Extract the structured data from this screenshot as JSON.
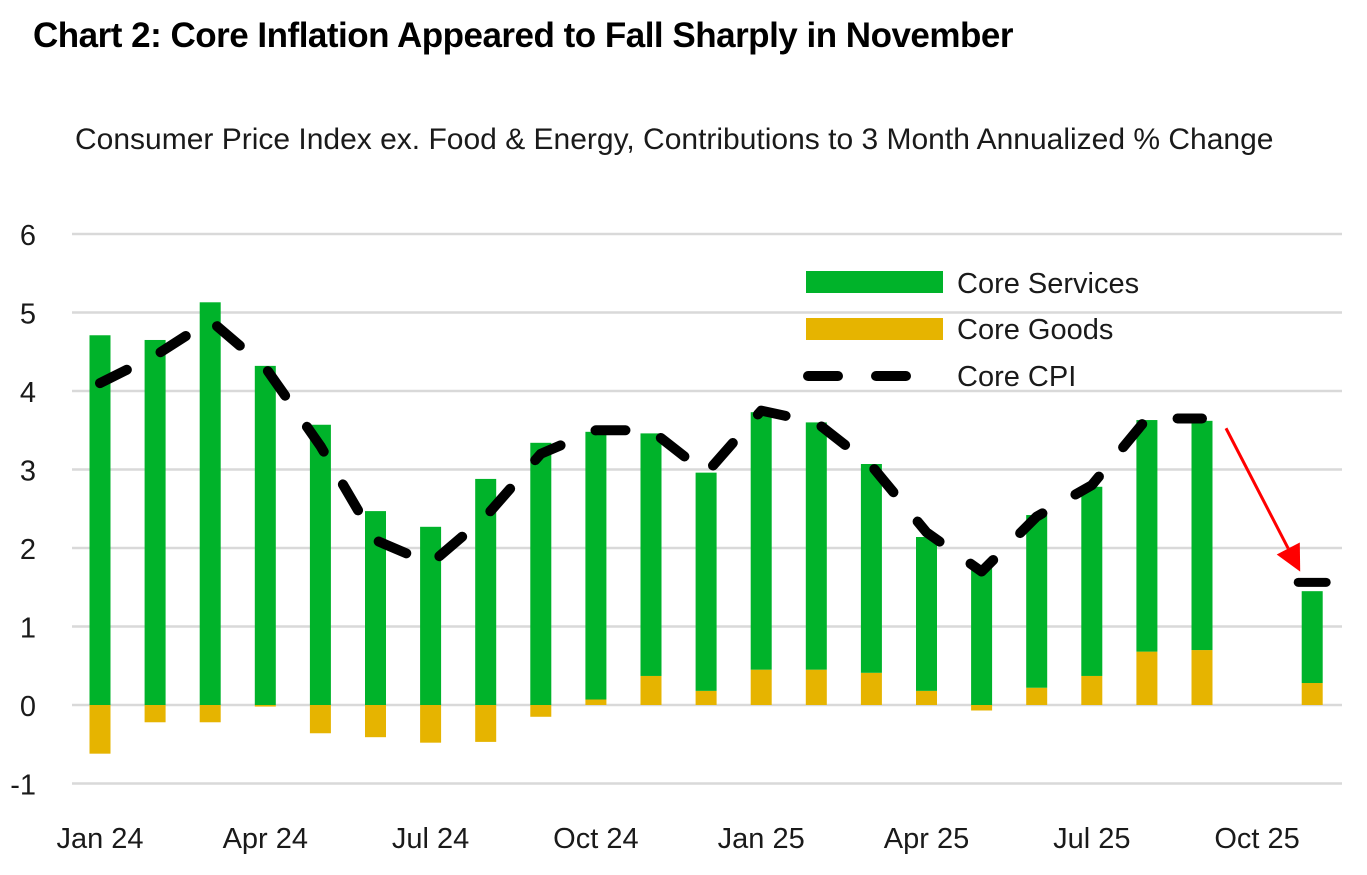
{
  "title": "Chart 2: Core Inflation Appeared to Fall Sharply in November",
  "subtitle": "Consumer Price Index ex. Food & Energy, Contributions to 3 Month Annualized % Change",
  "colors": {
    "services": "#00b32a",
    "goods": "#e6b400",
    "core_cpi": "#000000",
    "arrow": "#ff0000",
    "gridline": "#d9d9d9"
  },
  "chart_data": {
    "type": "bar",
    "stacked": true,
    "title": "Chart 2: Core Inflation Appeared to Fall Sharply in November",
    "subtitle": "Consumer Price Index ex. Food & Energy, Contributions to 3 Month Annualized % Change",
    "xlabel": "",
    "ylabel": "",
    "ylim": [
      -1,
      6
    ],
    "yticks": [
      6,
      5,
      4,
      3,
      2,
      1,
      0,
      -1
    ],
    "grid": true,
    "legend_position": "top-right",
    "categories": [
      "Jan 24",
      "Feb 24",
      "Mar 24",
      "Apr 24",
      "May 24",
      "Jun 24",
      "Jul 24",
      "Aug 24",
      "Sep 24",
      "Oct 24",
      "Nov 24",
      "Dec 24",
      "Jan 25",
      "Feb 25",
      "Mar 25",
      "Apr 25",
      "May 25",
      "Jun 25",
      "Jul 25",
      "Aug 25",
      "Sep 25",
      "Oct 25",
      "Nov 25"
    ],
    "xtick_labels": [
      "Jan 24",
      "Apr 24",
      "Jul 24",
      "Oct 24",
      "Jan 25",
      "Apr 25",
      "Jul 25",
      "Oct 25"
    ],
    "series": [
      {
        "name": "Core Services",
        "type": "bar",
        "values": [
          4.71,
          4.65,
          5.13,
          4.32,
          3.57,
          2.47,
          2.27,
          2.88,
          3.34,
          3.41,
          3.09,
          2.78,
          3.28,
          3.15,
          2.66,
          1.96,
          1.75,
          2.2,
          2.41,
          2.95,
          2.92,
          null,
          1.17
        ]
      },
      {
        "name": "Core Goods",
        "type": "bar",
        "values": [
          -0.62,
          -0.22,
          -0.22,
          -0.02,
          -0.36,
          -0.41,
          -0.48,
          -0.47,
          -0.15,
          0.07,
          0.37,
          0.18,
          0.45,
          0.45,
          0.41,
          0.18,
          -0.07,
          0.22,
          0.37,
          0.68,
          0.7,
          null,
          0.28
        ]
      },
      {
        "name": "Core CPI",
        "type": "line",
        "style": "dashed",
        "values": [
          4.1,
          4.45,
          4.9,
          4.3,
          3.3,
          2.1,
          1.8,
          2.4,
          3.2,
          3.5,
          3.5,
          2.95,
          3.75,
          3.6,
          3.05,
          2.2,
          1.7,
          2.4,
          2.8,
          3.65,
          3.65,
          null,
          1.55
        ]
      }
    ],
    "annotations": [
      {
        "type": "arrow",
        "color": "#ff0000",
        "from_category": "Sep 25",
        "to_category": "Nov 25",
        "from_value": 3.5,
        "to_value": 1.75,
        "meaning": "sharp fall in November"
      }
    ]
  },
  "legend": [
    {
      "label": "Core Services",
      "kind": "bar"
    },
    {
      "label": "Core Goods",
      "kind": "bar"
    },
    {
      "label": "Core CPI",
      "kind": "dashed-line"
    }
  ]
}
